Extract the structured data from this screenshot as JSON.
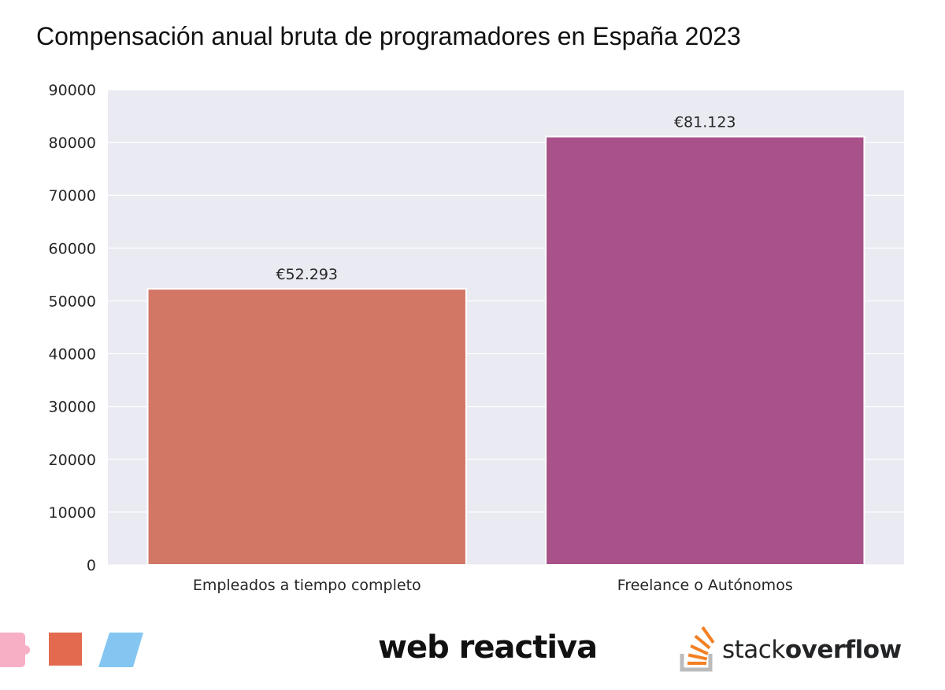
{
  "colors": {
    "plot_background": "#eaeaf2",
    "grid": "#ffffff",
    "bar_employee": "#d27766",
    "bar_freelance": "#a85289",
    "tick_text": "#262626",
    "footer_pink": "#f7afc5",
    "footer_coral": "#e3694f",
    "footer_blue": "#84c6f1",
    "stackoverflow_orange": "#f48024",
    "stackoverflow_gray": "#bcbbbb"
  },
  "icons": [
    "pink-tag-shape",
    "coral-square-shape",
    "blue-parallelogram-shape",
    "stackoverflow-icon"
  ],
  "footer": {
    "brand_left": "web reactiva",
    "brand_right_light": "stack",
    "brand_right_bold": "overflow"
  },
  "chart_data": {
    "type": "bar",
    "title": "Compensación anual bruta de programadores en España 2023",
    "xlabel": "",
    "ylabel": "",
    "categories": [
      "Empleados a tiempo completo",
      "Freelance o Autónomos"
    ],
    "values": [
      52293,
      81123
    ],
    "data_labels": [
      "€52.293",
      "€81.123"
    ],
    "ylim": [
      0,
      90000
    ],
    "yticks": [
      0,
      10000,
      20000,
      30000,
      40000,
      50000,
      60000,
      70000,
      80000,
      90000
    ],
    "ytick_labels": [
      "0",
      "10000",
      "20000",
      "30000",
      "40000",
      "50000",
      "60000",
      "70000",
      "80000",
      "90000"
    ],
    "grid": true,
    "legend": "none"
  }
}
